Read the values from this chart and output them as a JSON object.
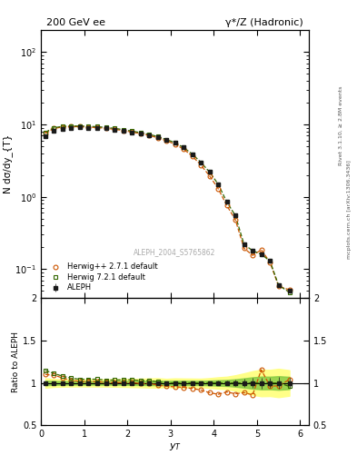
{
  "title_left": "200 GeV ee",
  "title_right": "γ*/Z (Hadronic)",
  "right_label": "Rivet 3.1.10, ≥ 2.8M events",
  "right_label2": "mcplots.cern.ch [arXiv:1306.3436]",
  "watermark": "ALEPH_2004_S5765862",
  "xlabel": "y_{T}",
  "ylabel_main": "N dσ/dy_{T}",
  "ylabel_ratio": "Ratio to ALEPH",
  "aleph_x": [
    0.1,
    0.3,
    0.5,
    0.7,
    0.9,
    1.1,
    1.3,
    1.5,
    1.7,
    1.9,
    2.1,
    2.3,
    2.5,
    2.7,
    2.9,
    3.1,
    3.3,
    3.5,
    3.7,
    3.9,
    4.1,
    4.3,
    4.5,
    4.7,
    4.9,
    5.1,
    5.3,
    5.5,
    5.75
  ],
  "aleph_y": [
    6.8,
    8.1,
    8.7,
    9.0,
    9.1,
    9.0,
    8.9,
    8.8,
    8.5,
    8.2,
    7.8,
    7.5,
    7.1,
    6.7,
    6.2,
    5.6,
    4.8,
    3.9,
    3.0,
    2.2,
    1.5,
    0.85,
    0.55,
    0.22,
    0.18,
    0.16,
    0.13,
    0.06,
    0.05
  ],
  "aleph_yerr": [
    0.15,
    0.15,
    0.15,
    0.15,
    0.15,
    0.15,
    0.15,
    0.15,
    0.15,
    0.15,
    0.15,
    0.15,
    0.15,
    0.15,
    0.12,
    0.12,
    0.1,
    0.08,
    0.06,
    0.05,
    0.04,
    0.025,
    0.02,
    0.01,
    0.01,
    0.01,
    0.008,
    0.004,
    0.003
  ],
  "herwig1_x": [
    0.1,
    0.3,
    0.5,
    0.7,
    0.9,
    1.1,
    1.3,
    1.5,
    1.7,
    1.9,
    2.1,
    2.3,
    2.5,
    2.7,
    2.9,
    3.1,
    3.3,
    3.5,
    3.7,
    3.9,
    4.1,
    4.3,
    4.5,
    4.7,
    4.9,
    5.1,
    5.3,
    5.5,
    5.75
  ],
  "herwig1_y": [
    7.5,
    8.8,
    9.2,
    9.3,
    9.3,
    9.15,
    9.05,
    8.85,
    8.55,
    8.25,
    7.85,
    7.45,
    7.05,
    6.55,
    5.95,
    5.35,
    4.55,
    3.65,
    2.75,
    1.95,
    1.3,
    0.76,
    0.48,
    0.195,
    0.155,
    0.185,
    0.125,
    0.058,
    0.052
  ],
  "herwig2_x": [
    0.1,
    0.3,
    0.5,
    0.7,
    0.9,
    1.1,
    1.3,
    1.5,
    1.7,
    1.9,
    2.1,
    2.3,
    2.5,
    2.7,
    2.9,
    3.1,
    3.3,
    3.5,
    3.7,
    3.9,
    4.1,
    4.3,
    4.5,
    4.7,
    4.9,
    5.1,
    5.3,
    5.5,
    5.75
  ],
  "herwig2_y": [
    7.8,
    9.0,
    9.4,
    9.5,
    9.5,
    9.4,
    9.3,
    9.1,
    8.8,
    8.5,
    8.1,
    7.7,
    7.3,
    6.8,
    6.2,
    5.6,
    4.8,
    3.9,
    3.0,
    2.2,
    1.5,
    0.85,
    0.55,
    0.22,
    0.18,
    0.16,
    0.13,
    0.06,
    0.048
  ],
  "ratio1_y": [
    1.1,
    1.09,
    1.06,
    1.03,
    1.02,
    1.017,
    1.017,
    1.006,
    1.006,
    1.006,
    1.006,
    0.993,
    0.993,
    0.978,
    0.96,
    0.955,
    0.948,
    0.936,
    0.917,
    0.886,
    0.867,
    0.894,
    0.873,
    0.886,
    0.861,
    1.156,
    0.962,
    0.967,
    1.04
  ],
  "ratio2_y": [
    1.147,
    1.111,
    1.08,
    1.056,
    1.044,
    1.044,
    1.045,
    1.034,
    1.035,
    1.037,
    1.038,
    1.027,
    1.028,
    1.015,
    1.0,
    1.0,
    1.0,
    1.0,
    1.0,
    1.0,
    1.0,
    1.0,
    1.0,
    1.0,
    1.0,
    1.0,
    1.0,
    1.0,
    0.96
  ],
  "aleph_color": "#1a1a1a",
  "herwig1_color": "#cc5500",
  "herwig2_color": "#336600",
  "band1_color": "#ffff88",
  "band2_color": "#88cc44",
  "ylim_main": [
    0.04,
    200
  ],
  "ylim_ratio": [
    0.5,
    2.0
  ],
  "xlim": [
    0.0,
    6.2
  ],
  "legend1": "ALEPH",
  "legend2": "Herwig++ 2.7.1 default",
  "legend3": "Herwig 7.2.1 default"
}
